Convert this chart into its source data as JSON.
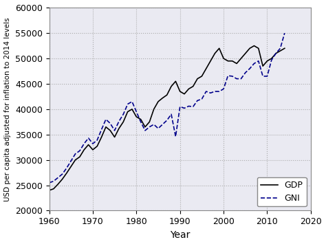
{
  "gdp_years": [
    1960,
    1961,
    1962,
    1963,
    1964,
    1965,
    1966,
    1967,
    1968,
    1969,
    1970,
    1971,
    1972,
    1973,
    1974,
    1975,
    1976,
    1977,
    1978,
    1979,
    1980,
    1981,
    1982,
    1983,
    1984,
    1985,
    1986,
    1987,
    1988,
    1989,
    1990,
    1991,
    1992,
    1993,
    1994,
    1995,
    1996,
    1997,
    1998,
    1999,
    2000,
    2001,
    2002,
    2003,
    2004,
    2005,
    2006,
    2007,
    2008,
    2009,
    2010,
    2011,
    2012,
    2013,
    2014
  ],
  "gdp_values": [
    24000,
    24300,
    25200,
    26200,
    27400,
    28700,
    30000,
    30600,
    32000,
    33000,
    32000,
    32700,
    34500,
    36500,
    35800,
    34500,
    36200,
    37500,
    39500,
    40000,
    38500,
    38000,
    36500,
    37500,
    40000,
    41500,
    42200,
    42800,
    44500,
    45500,
    43500,
    43000,
    44000,
    44500,
    46000,
    46500,
    48000,
    49500,
    51000,
    52000,
    50000,
    49500,
    49500,
    49000,
    50000,
    51000,
    52000,
    52500,
    52000,
    48500,
    49500,
    50000,
    51000,
    51500,
    52000
  ],
  "gni_years": [
    1960,
    1961,
    1962,
    1963,
    1964,
    1965,
    1966,
    1967,
    1968,
    1969,
    1970,
    1971,
    1972,
    1973,
    1974,
    1975,
    1976,
    1977,
    1978,
    1979,
    1980,
    1981,
    1982,
    1983,
    1984,
    1985,
    1986,
    1987,
    1988,
    1989,
    1990,
    1991,
    1992,
    1993,
    1994,
    1995,
    1996,
    1997,
    1998,
    1999,
    2000,
    2001,
    2002,
    2003,
    2004,
    2005,
    2006,
    2007,
    2008,
    2009,
    2010,
    2011,
    2012,
    2013,
    2014
  ],
  "gni_values": [
    25500,
    25800,
    26500,
    27200,
    28400,
    29800,
    31200,
    31800,
    33200,
    34300,
    33200,
    33900,
    36000,
    38000,
    37200,
    35800,
    37600,
    39000,
    41000,
    41500,
    39500,
    37500,
    35800,
    36500,
    37000,
    36200,
    37000,
    37800,
    39000,
    34600,
    40500,
    40200,
    40600,
    40500,
    41700,
    42000,
    43500,
    43200,
    43500,
    43500,
    44000,
    46600,
    46500,
    46000,
    46000,
    47200,
    48000,
    49000,
    49500,
    46500,
    46500,
    49700,
    51000,
    52000,
    55000
  ],
  "gdp_color": "#000000",
  "gni_color": "#00008b",
  "gdp_linestyle": "-",
  "gni_linestyle": "--",
  "gdp_linewidth": 1.2,
  "gni_linewidth": 1.2,
  "xlabel": "Year",
  "ylabel": "USD per capita adjusted for inflation to 2014 levels",
  "xlim": [
    1960,
    2020
  ],
  "ylim": [
    20000,
    60000
  ],
  "xticks": [
    1960,
    1970,
    1980,
    1990,
    2000,
    2010,
    2020
  ],
  "yticks": [
    20000,
    25000,
    30000,
    35000,
    40000,
    45000,
    50000,
    55000,
    60000
  ],
  "legend_labels": [
    "GDP",
    "GNI"
  ],
  "legend_loc": "lower right",
  "grid_color": "#aaaaaa",
  "grid_linestyle": ":",
  "grid_linewidth": 0.8,
  "bg_color": "#eaeaf2",
  "fig_bg_color": "#ffffff"
}
